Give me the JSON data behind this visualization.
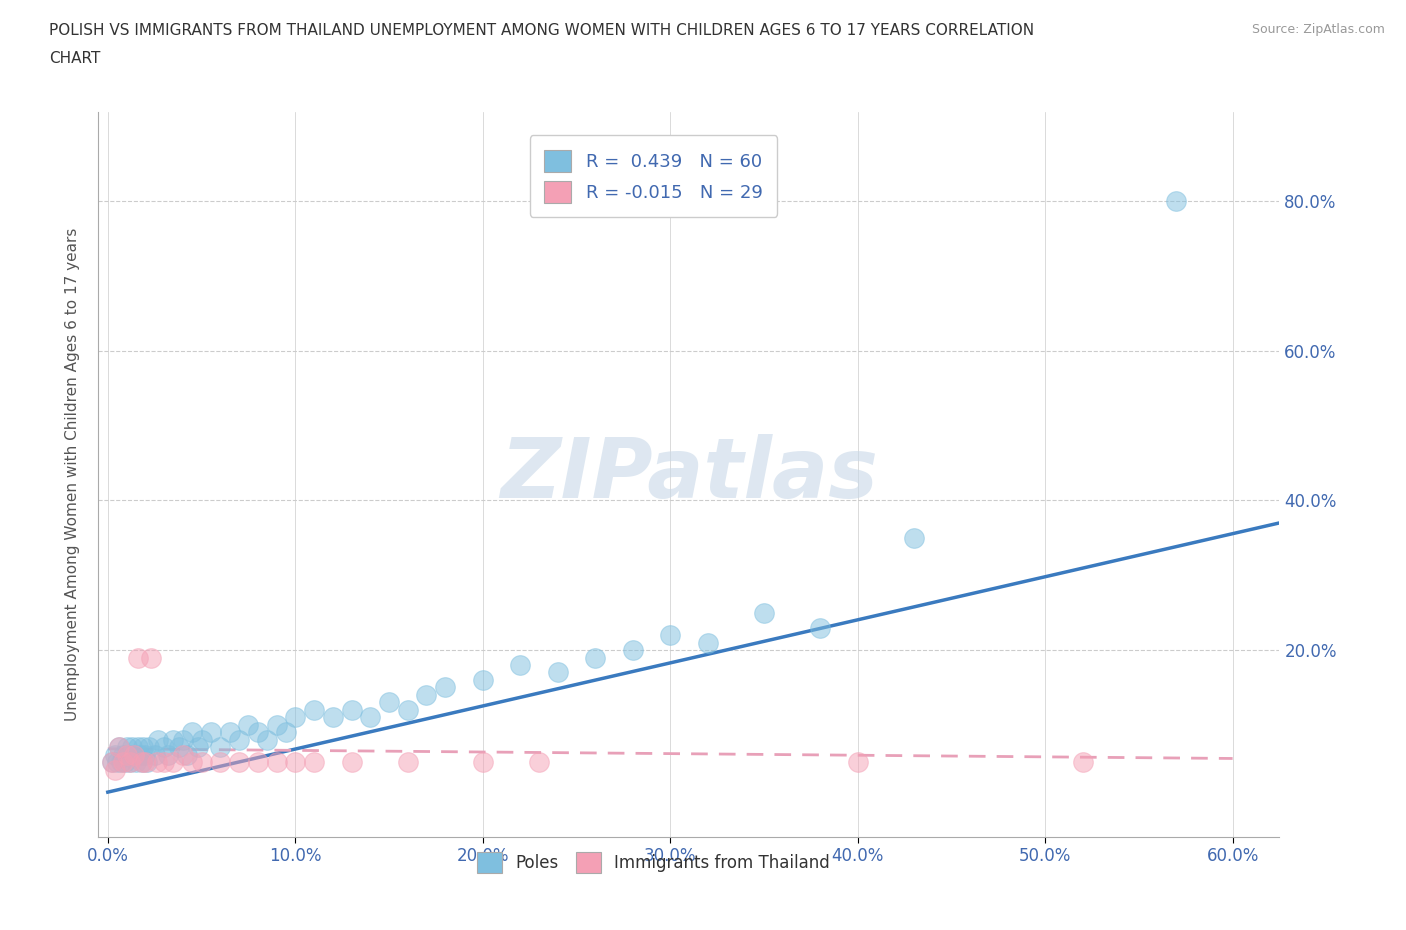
{
  "title_line1": "POLISH VS IMMIGRANTS FROM THAILAND UNEMPLOYMENT AMONG WOMEN WITH CHILDREN AGES 6 TO 17 YEARS CORRELATION",
  "title_line2": "CHART",
  "source": "Source: ZipAtlas.com",
  "ylabel": "Unemployment Among Women with Children Ages 6 to 17 years",
  "xlim": [
    -0.005,
    0.625
  ],
  "ylim": [
    -0.05,
    0.92
  ],
  "ytick_values": [
    0.2,
    0.4,
    0.6,
    0.8
  ],
  "xtick_values": [
    0.0,
    0.1,
    0.2,
    0.3,
    0.4,
    0.5,
    0.6
  ],
  "blue_color": "#7fbfdf",
  "pink_color": "#f4a0b5",
  "trend_blue_color": "#3a7abf",
  "trend_pink_color": "#e8a0b8",
  "R_blue": 0.439,
  "N_blue": 60,
  "R_pink": -0.015,
  "N_pink": 29,
  "legend_text_color": "#4169b0",
  "watermark_text": "ZIPatlas",
  "watermark_color": "#c8d8e8",
  "background_color": "#ffffff",
  "grid_color": "#cccccc",
  "tick_label_color": "#4169b0",
  "ylabel_color": "#555555",
  "title_color": "#333333",
  "source_color": "#999999",
  "poles_x": [
    0.002,
    0.004,
    0.005,
    0.006,
    0.007,
    0.008,
    0.009,
    0.01,
    0.011,
    0.012,
    0.013,
    0.014,
    0.015,
    0.016,
    0.017,
    0.018,
    0.019,
    0.02,
    0.021,
    0.022,
    0.025,
    0.027,
    0.03,
    0.032,
    0.035,
    0.038,
    0.04,
    0.042,
    0.045,
    0.048,
    0.05,
    0.055,
    0.06,
    0.065,
    0.07,
    0.075,
    0.08,
    0.085,
    0.09,
    0.095,
    0.1,
    0.11,
    0.12,
    0.13,
    0.14,
    0.15,
    0.16,
    0.17,
    0.18,
    0.2,
    0.22,
    0.24,
    0.26,
    0.28,
    0.3,
    0.32,
    0.35,
    0.38,
    0.43,
    0.57
  ],
  "poles_y": [
    0.05,
    0.06,
    0.05,
    0.07,
    0.05,
    0.06,
    0.05,
    0.07,
    0.06,
    0.05,
    0.07,
    0.06,
    0.05,
    0.07,
    0.06,
    0.05,
    0.07,
    0.06,
    0.05,
    0.07,
    0.06,
    0.08,
    0.07,
    0.06,
    0.08,
    0.07,
    0.08,
    0.06,
    0.09,
    0.07,
    0.08,
    0.09,
    0.07,
    0.09,
    0.08,
    0.1,
    0.09,
    0.08,
    0.1,
    0.09,
    0.11,
    0.12,
    0.11,
    0.12,
    0.11,
    0.13,
    0.12,
    0.14,
    0.15,
    0.16,
    0.18,
    0.17,
    0.19,
    0.2,
    0.22,
    0.21,
    0.25,
    0.23,
    0.35,
    0.8
  ],
  "thai_x": [
    0.002,
    0.004,
    0.006,
    0.008,
    0.01,
    0.012,
    0.014,
    0.016,
    0.018,
    0.02,
    0.023,
    0.026,
    0.03,
    0.035,
    0.04,
    0.045,
    0.05,
    0.06,
    0.07,
    0.08,
    0.09,
    0.1,
    0.11,
    0.13,
    0.16,
    0.2,
    0.23,
    0.4,
    0.52
  ],
  "thai_y": [
    0.05,
    0.04,
    0.07,
    0.05,
    0.06,
    0.05,
    0.06,
    0.19,
    0.05,
    0.05,
    0.19,
    0.05,
    0.05,
    0.05,
    0.06,
    0.05,
    0.05,
    0.05,
    0.05,
    0.05,
    0.05,
    0.05,
    0.05,
    0.05,
    0.05,
    0.05,
    0.05,
    0.05,
    0.05
  ]
}
